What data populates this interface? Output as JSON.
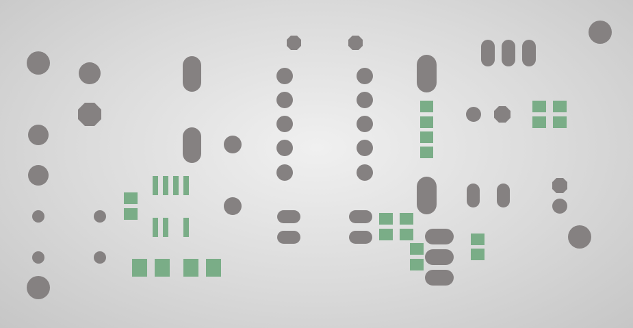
{
  "colors": {
    "background_center": "#f0f0f0",
    "background_edge": "#c6c6c6",
    "through_hole_pad": "#858181",
    "smd_pad": "#7aad87"
  }
}
